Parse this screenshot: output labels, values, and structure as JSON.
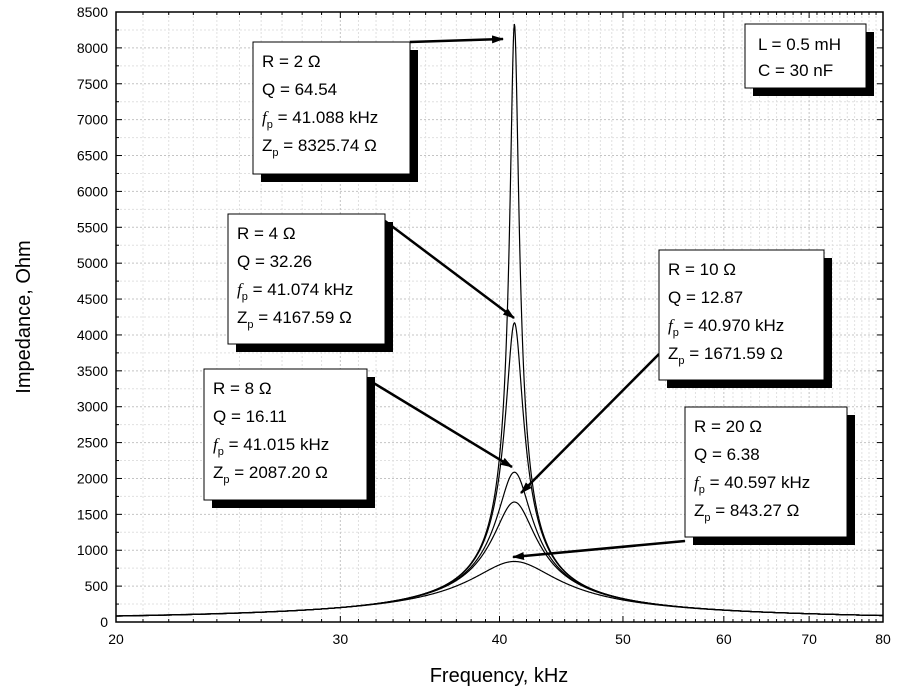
{
  "chart_data": {
    "type": "line",
    "title": "",
    "xlabel": "Frequency, kHz",
    "ylabel": "Impedance, Ohm",
    "xlim": [
      20,
      80
    ],
    "ylim": [
      0,
      8500
    ],
    "x_scale": "log",
    "grid": true,
    "x_ticks": [
      "20",
      "30",
      "40",
      "50",
      "60",
      "70",
      "80"
    ],
    "y_ticks": [
      "0",
      "500",
      "1000",
      "1500",
      "2000",
      "2500",
      "3000",
      "3500",
      "4000",
      "4500",
      "5000",
      "5500",
      "6000",
      "6500",
      "7000",
      "7500",
      "8000",
      "8500"
    ],
    "params": {
      "L_line": "L = 0.5 mH",
      "C_line": "C = 30 nF"
    },
    "series": [
      {
        "R": "2",
        "Q": "64.54",
        "fp": "41.088",
        "Zp": "8325.74"
      },
      {
        "R": "4",
        "Q": "32.26",
        "fp": "41.074",
        "Zp": "4167.59"
      },
      {
        "R": "8",
        "Q": "16.11",
        "fp": "41.015",
        "Zp": "2087.20"
      },
      {
        "R": "10",
        "Q": "12.87",
        "fp": "40.970",
        "Zp": "1671.59"
      },
      {
        "R": "20",
        "Q": "6.38",
        "fp": "40.597",
        "Zp": "843.27"
      }
    ]
  }
}
